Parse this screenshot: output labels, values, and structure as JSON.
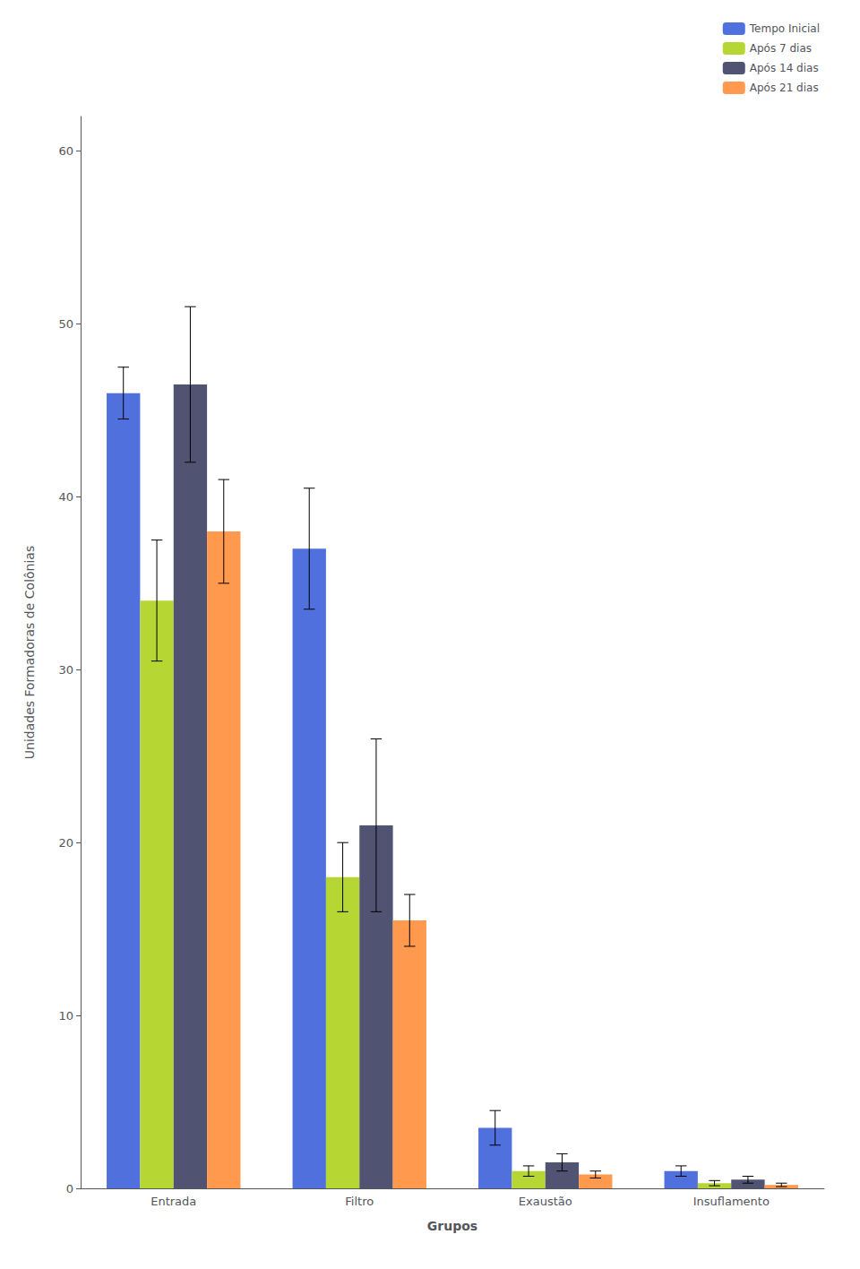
{
  "chart_data": {
    "type": "bar",
    "categories": [
      "Entrada",
      "Filtro",
      "Exaustão",
      "Insuflamento"
    ],
    "series": [
      {
        "name": "Tempo Inicial",
        "values": [
          46.0,
          37.0,
          3.5,
          1.0
        ],
        "errors": [
          1.5,
          3.5,
          1.0,
          0.3
        ]
      },
      {
        "name": "Após 7 dias",
        "values": [
          34.0,
          18.0,
          1.0,
          0.3
        ],
        "errors": [
          3.5,
          2.0,
          0.3,
          0.15
        ]
      },
      {
        "name": "Após 14 dias",
        "values": [
          46.5,
          21.0,
          1.5,
          0.5
        ],
        "errors": [
          4.5,
          5.0,
          0.5,
          0.2
        ]
      },
      {
        "name": "Após 21 dias",
        "values": [
          38.0,
          15.5,
          0.8,
          0.2
        ],
        "errors": [
          3.0,
          1.5,
          0.2,
          0.1
        ]
      }
    ],
    "xlabel": "Grupos",
    "ylabel": "Unidades Formadoras de Colônias",
    "ylim": [
      0,
      62
    ],
    "yticks": [
      0,
      10,
      20,
      30,
      40,
      50,
      60
    ],
    "legend": "upper right",
    "grid": false
  }
}
